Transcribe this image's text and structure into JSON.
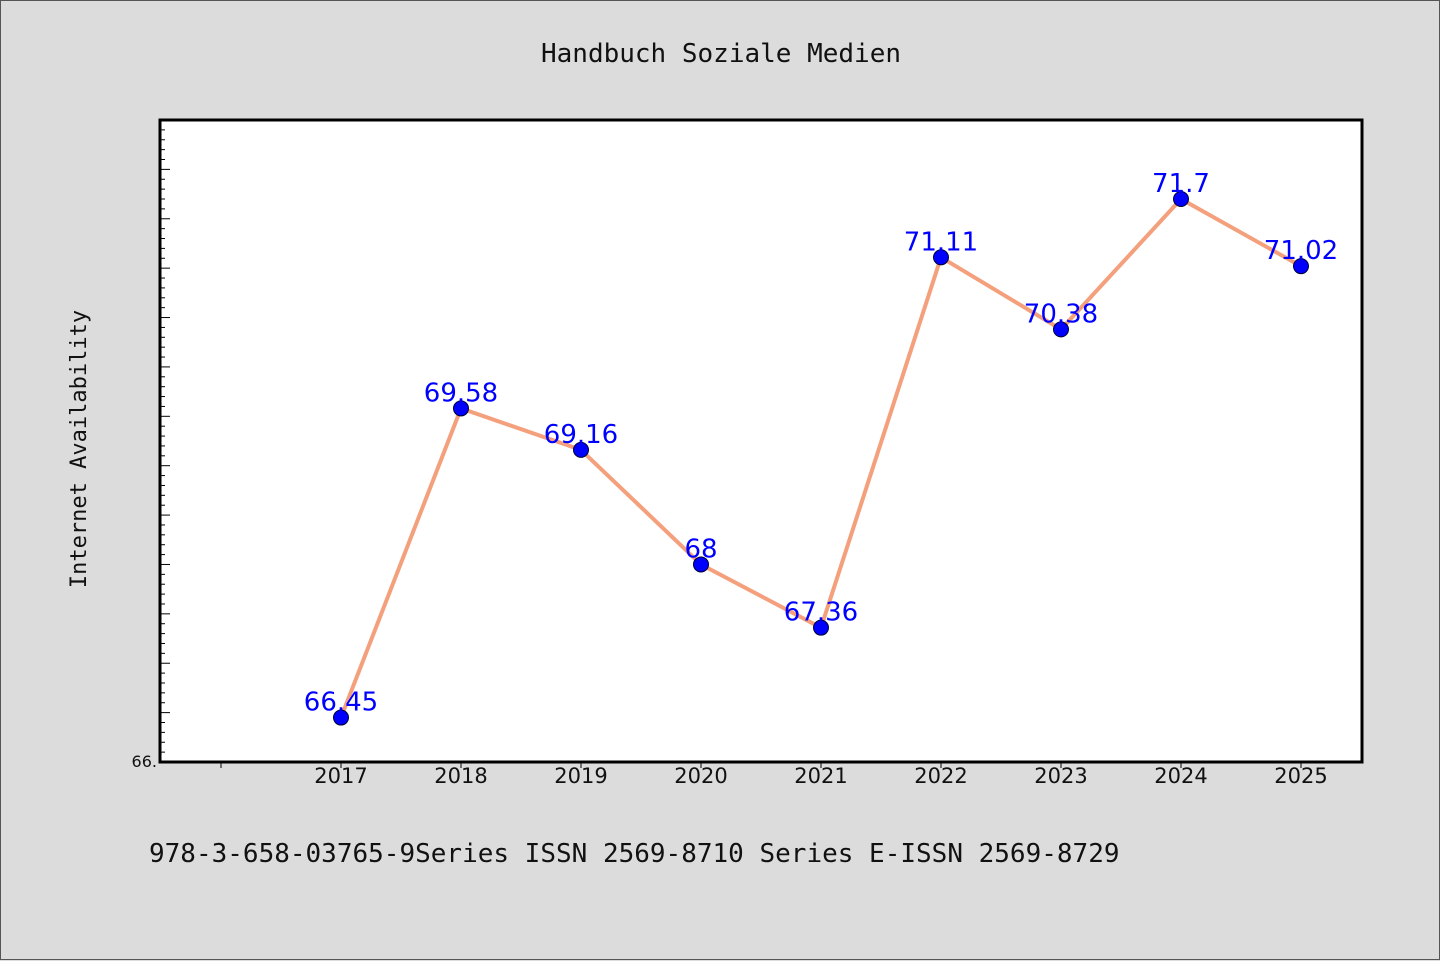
{
  "chart_data": {
    "type": "line",
    "title": "Handbuch Soziale Medien",
    "xlabel": "",
    "ylabel": "Internet Availability",
    "categories": [
      "2017",
      "2018",
      "2019",
      "2020",
      "2021",
      "2022",
      "2023",
      "2024",
      "2025"
    ],
    "series": [
      {
        "values": [
          66.45,
          69.58,
          69.16,
          68,
          67.36,
          71.11,
          70.38,
          71.7,
          71.02
        ],
        "labels": [
          "66.45",
          "69.58",
          "69.16",
          "68",
          "67.36",
          "71.11",
          "70.38",
          "71.7",
          "71.02"
        ]
      }
    ],
    "ylim": [
      66,
      72.5
    ],
    "y_tick_label": "66.",
    "grid": false,
    "colors": {
      "line": "#f4a07c",
      "marker": "#0000ff",
      "label": "#0000ff"
    }
  },
  "footer": {
    "text": "978-3-658-03765-9Series ISSN 2569-8710 Series E-ISSN 2569-8729"
  }
}
